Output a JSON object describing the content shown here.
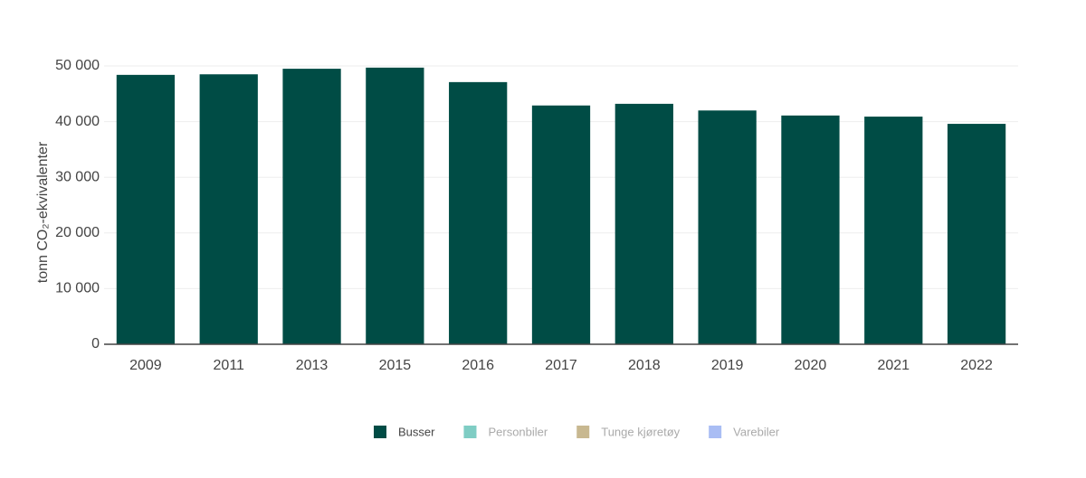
{
  "chart_data": {
    "type": "bar",
    "y_label": "tonn CO₂-ekvivalenter",
    "categories": [
      "2009",
      "2011",
      "2013",
      "2015",
      "2016",
      "2017",
      "2018",
      "2019",
      "2020",
      "2021",
      "2022"
    ],
    "series": [
      {
        "name": "Busser",
        "color": "#004c45",
        "visible": true,
        "values": [
          48400,
          48500,
          49500,
          49700,
          47100,
          42900,
          43200,
          42000,
          41100,
          40900,
          39600
        ]
      },
      {
        "name": "Personbiler",
        "color": "#7fcdc4",
        "visible": false,
        "values": [
          null,
          null,
          null,
          null,
          null,
          null,
          null,
          null,
          null,
          null,
          null
        ]
      },
      {
        "name": "Tunge kjøretøy",
        "color": "#c8b890",
        "visible": false,
        "values": [
          null,
          null,
          null,
          null,
          null,
          null,
          null,
          null,
          null,
          null,
          null
        ]
      },
      {
        "name": "Varebiler",
        "color": "#a9bdf4",
        "visible": false,
        "values": [
          null,
          null,
          null,
          null,
          null,
          null,
          null,
          null,
          null,
          null,
          null
        ]
      }
    ],
    "ylim": [
      0,
      50000
    ],
    "yticks": [
      0,
      {
        "value": 10000,
        "label": "10 000"
      },
      {
        "value": 20000,
        "label": "20 000"
      },
      {
        "value": 30000,
        "label": "30 000"
      },
      {
        "value": 40000,
        "label": "40 000"
      },
      {
        "value": 50000,
        "label": "50 000"
      }
    ],
    "grid": true
  }
}
